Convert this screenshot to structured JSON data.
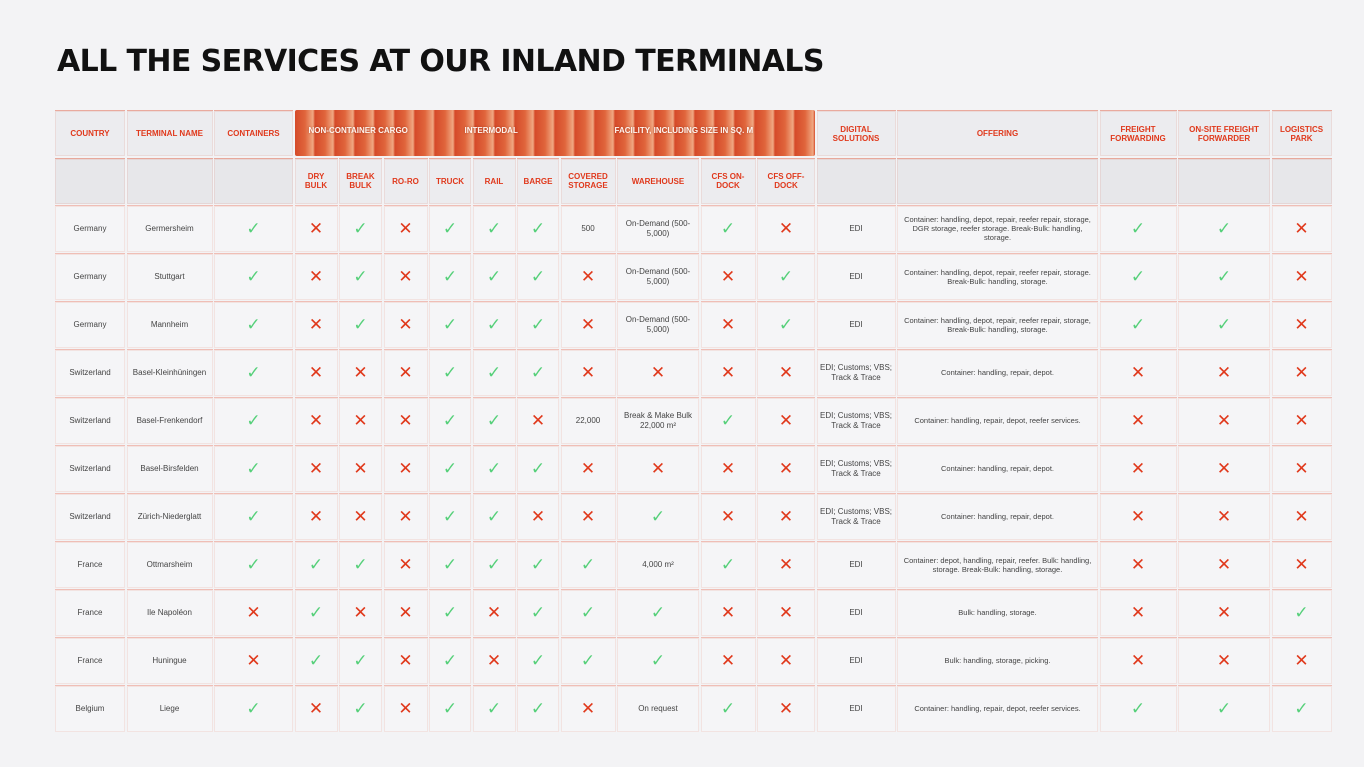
{
  "title": "ALL THE SERVICES AT OUR INLAND TERMINALS",
  "colors": {
    "accent": "#e0391c",
    "yes": "#56d07a",
    "background": "#f3f3f5"
  },
  "icons": {
    "yes": "checkmark-icon",
    "no": "cross-icon"
  },
  "header": {
    "country": "COUNTRY",
    "terminal_name": "TERMINAL NAME",
    "containers": "CONTAINERS",
    "band_non_container": "NON-CONTAINER CARGO",
    "band_intermodal": "INTERMODAL",
    "band_facility": "FACILITY, INCLUDING SIZE IN SQ. M",
    "digital_solutions": "DIGITAL SOLUTIONS",
    "offering": "OFFERING",
    "freight_forwarding": "FREIGHT FORWARDING",
    "onsite_forwarder": "ON-SITE FREIGHT FORWARDER",
    "logistics_park": "LOGISTICS PARK",
    "dry_bulk": "DRY BULK",
    "break_bulk": "BREAK BULK",
    "ro_ro": "RO-RO",
    "truck": "TRUCK",
    "rail": "RAIL",
    "barge": "BARGE",
    "covered_storage": "COVERED STORAGE",
    "warehouse": "WAREHOUSE",
    "cfs_on_dock": "CFS ON-DOCK",
    "cfs_off_dock": "CFS OFF-DOCK"
  },
  "rows": [
    {
      "country": "Germany",
      "terminal": "Germersheim",
      "containers": "yes",
      "dry_bulk": "no",
      "break_bulk": "yes",
      "ro_ro": "no",
      "truck": "yes",
      "rail": "yes",
      "barge": "yes",
      "covered_storage": "500",
      "warehouse": "On-Demand (500-5,000)",
      "cfs_on_dock": "yes",
      "cfs_off_dock": "no",
      "digital": "EDI",
      "offering": "Container: handling, depot, repair, reefer repair, storage, DGR storage, reefer storage. Break-Bulk: handling, storage.",
      "freight_forwarding": "yes",
      "onsite_forwarder": "yes",
      "logistics_park": "no"
    },
    {
      "country": "Germany",
      "terminal": "Stuttgart",
      "containers": "yes",
      "dry_bulk": "no",
      "break_bulk": "yes",
      "ro_ro": "no",
      "truck": "yes",
      "rail": "yes",
      "barge": "yes",
      "covered_storage": "no",
      "warehouse": "On-Demand (500-5,000)",
      "cfs_on_dock": "no",
      "cfs_off_dock": "yes",
      "digital": "EDI",
      "offering": "Container: handling, depot, repair, reefer repair, storage. Break-Bulk: handling, storage.",
      "freight_forwarding": "yes",
      "onsite_forwarder": "yes",
      "logistics_park": "no"
    },
    {
      "country": "Germany",
      "terminal": "Mannheim",
      "containers": "yes",
      "dry_bulk": "no",
      "break_bulk": "yes",
      "ro_ro": "no",
      "truck": "yes",
      "rail": "yes",
      "barge": "yes",
      "covered_storage": "no",
      "warehouse": "On-Demand (500-5,000)",
      "cfs_on_dock": "no",
      "cfs_off_dock": "yes",
      "digital": "EDI",
      "offering": "Container: handling, depot, repair, reefer repair, storage, Break-Bulk: handling, storage.",
      "freight_forwarding": "yes",
      "onsite_forwarder": "yes",
      "logistics_park": "no"
    },
    {
      "country": "Switzerland",
      "terminal": "Basel-Kleinhüningen",
      "containers": "yes",
      "dry_bulk": "no",
      "break_bulk": "no",
      "ro_ro": "no",
      "truck": "yes",
      "rail": "yes",
      "barge": "yes",
      "covered_storage": "no",
      "warehouse": "no",
      "cfs_on_dock": "no",
      "cfs_off_dock": "no",
      "digital": "EDI; Customs; VBS; Track & Trace",
      "offering": "Container: handling, repair, depot.",
      "freight_forwarding": "no",
      "onsite_forwarder": "no",
      "logistics_park": "no"
    },
    {
      "country": "Switzerland",
      "terminal": "Basel-Frenkendorf",
      "containers": "yes",
      "dry_bulk": "no",
      "break_bulk": "no",
      "ro_ro": "no",
      "truck": "yes",
      "rail": "yes",
      "barge": "no",
      "covered_storage": "22,000",
      "warehouse": "Break & Make Bulk 22,000 m²",
      "cfs_on_dock": "yes",
      "cfs_off_dock": "no",
      "digital": "EDI; Customs; VBS; Track & Trace",
      "offering": "Container: handling, repair, depot, reefer services.",
      "freight_forwarding": "no",
      "onsite_forwarder": "no",
      "logistics_park": "no"
    },
    {
      "country": "Switzerland",
      "terminal": "Basel-Birsfelden",
      "containers": "yes",
      "dry_bulk": "no",
      "break_bulk": "no",
      "ro_ro": "no",
      "truck": "yes",
      "rail": "yes",
      "barge": "yes",
      "covered_storage": "no",
      "warehouse": "no",
      "cfs_on_dock": "no",
      "cfs_off_dock": "no",
      "digital": "EDI; Customs; VBS; Track & Trace",
      "offering": "Container: handling, repair, depot.",
      "freight_forwarding": "no",
      "onsite_forwarder": "no",
      "logistics_park": "no"
    },
    {
      "country": "Switzerland",
      "terminal": "Zürich-Niederglatt",
      "containers": "yes",
      "dry_bulk": "no",
      "break_bulk": "no",
      "ro_ro": "no",
      "truck": "yes",
      "rail": "yes",
      "barge": "no",
      "covered_storage": "no",
      "warehouse": "yes",
      "cfs_on_dock": "no",
      "cfs_off_dock": "no",
      "digital": "EDI; Customs; VBS; Track & Trace",
      "offering": "Container: handling, repair, depot.",
      "freight_forwarding": "no",
      "onsite_forwarder": "no",
      "logistics_park": "no"
    },
    {
      "country": "France",
      "terminal": "Ottmarsheim",
      "containers": "yes",
      "dry_bulk": "yes",
      "break_bulk": "yes",
      "ro_ro": "no",
      "truck": "yes",
      "rail": "yes",
      "barge": "yes",
      "covered_storage": "yes",
      "warehouse": "4,000 m²",
      "cfs_on_dock": "yes",
      "cfs_off_dock": "no",
      "digital": "EDI",
      "offering": "Container: depot, handling, repair, reefer. Bulk: handling, storage. Break-Bulk: handling, storage.",
      "freight_forwarding": "no",
      "onsite_forwarder": "no",
      "logistics_park": "no"
    },
    {
      "country": "France",
      "terminal": "Ile Napoléon",
      "containers": "no",
      "dry_bulk": "yes",
      "break_bulk": "no",
      "ro_ro": "no",
      "truck": "yes",
      "rail": "no",
      "barge": "yes",
      "covered_storage": "yes",
      "warehouse": "yes",
      "cfs_on_dock": "no",
      "cfs_off_dock": "no",
      "digital": "EDI",
      "offering": "Bulk: handling, storage.",
      "freight_forwarding": "no",
      "onsite_forwarder": "no",
      "logistics_park": "yes"
    },
    {
      "country": "France",
      "terminal": "Huningue",
      "containers": "no",
      "dry_bulk": "yes",
      "break_bulk": "yes",
      "ro_ro": "no",
      "truck": "yes",
      "rail": "no",
      "barge": "yes",
      "covered_storage": "yes",
      "warehouse": "yes",
      "cfs_on_dock": "no",
      "cfs_off_dock": "no",
      "digital": "EDI",
      "offering": "Bulk: handling, storage, picking.",
      "freight_forwarding": "no",
      "onsite_forwarder": "no",
      "logistics_park": "no"
    },
    {
      "country": "Belgium",
      "terminal": "Liege",
      "containers": "yes",
      "dry_bulk": "no",
      "break_bulk": "yes",
      "ro_ro": "no",
      "truck": "yes",
      "rail": "yes",
      "barge": "yes",
      "covered_storage": "no",
      "warehouse": "On request",
      "cfs_on_dock": "yes",
      "cfs_off_dock": "no",
      "digital": "EDI",
      "offering": "Container: handling, repair, depot, reefer services.",
      "freight_forwarding": "yes",
      "onsite_forwarder": "yes",
      "logistics_park": "yes"
    }
  ]
}
